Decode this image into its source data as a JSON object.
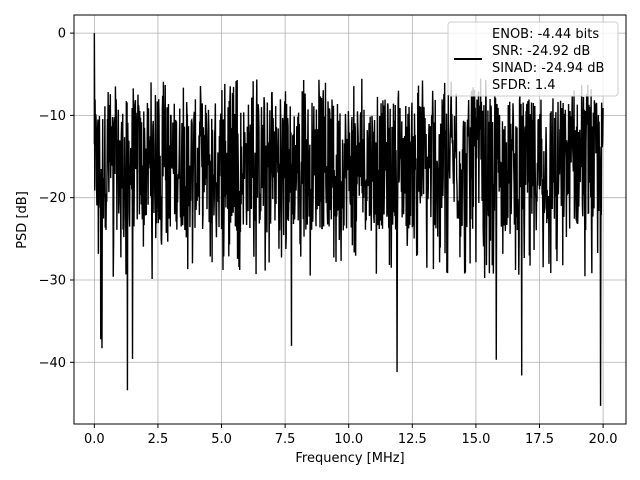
{
  "chart_data": {
    "type": "line",
    "xlabel": "Frequency [MHz]",
    "ylabel": "PSD [dB]",
    "xlim": [
      -0.8,
      20.9
    ],
    "ylim": [
      -47.5,
      2.2
    ],
    "xticks": [
      0.0,
      2.5,
      5.0,
      7.5,
      10.0,
      12.5,
      15.0,
      17.5,
      20.0
    ],
    "xtick_labels": [
      "0.0",
      "2.5",
      "5.0",
      "7.5",
      "10.0",
      "12.5",
      "15.0",
      "17.5",
      "20.0"
    ],
    "yticks": [
      0,
      -10,
      -20,
      -30,
      -40
    ],
    "ytick_labels": [
      "0",
      "−10",
      "−20",
      "−30",
      "−40"
    ],
    "grid": true,
    "legend_location": "top-right",
    "series": [
      {
        "color": "#000000",
        "peak": {
          "x": 0.0,
          "y": 0.0
        },
        "noise_band": {
          "x_start": 0.0,
          "x_end": 20.0,
          "typical_high": -8,
          "typical_low": -24
        },
        "deep_dips": [
          {
            "x": 0.25,
            "y": -37.2
          },
          {
            "x": 0.3,
            "y": -38.3
          },
          {
            "x": 1.3,
            "y": -43.4
          },
          {
            "x": 1.5,
            "y": -39.6
          },
          {
            "x": 7.75,
            "y": -38.0
          },
          {
            "x": 11.9,
            "y": -41.2
          },
          {
            "x": 15.8,
            "y": -39.7
          },
          {
            "x": 16.8,
            "y": -41.6
          },
          {
            "x": 19.9,
            "y": -45.3
          }
        ]
      }
    ],
    "legend_entries": [
      "ENOB: -4.44 bits",
      "SNR: -24.92 dB",
      "SINAD: -24.94 dB",
      "SFDR: 1.4"
    ],
    "colors": {
      "line": "#000000",
      "grid": "#b0b0b0",
      "legend_border": "#cccccc"
    }
  }
}
